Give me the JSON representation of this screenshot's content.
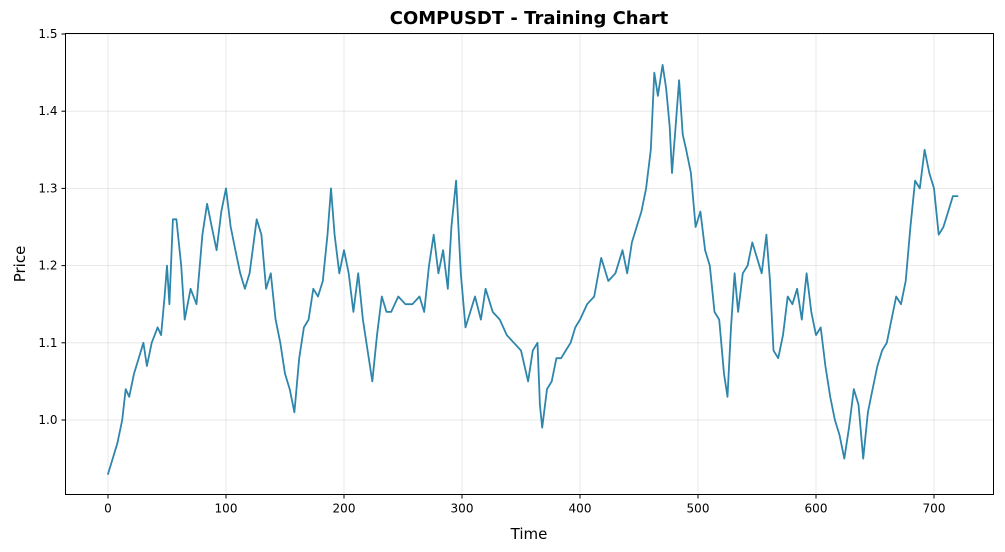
{
  "chart_data": {
    "type": "line",
    "title": "COMPUSDT - Training Chart",
    "xlabel": "Time",
    "ylabel": "Price",
    "xlim": [
      -37,
      1005
    ],
    "xlim_note": "data-units",
    "xlim_units": [
      -36,
      756
    ],
    "ylim": [
      0.905,
      1.5
    ],
    "grid": true,
    "x_ticks": [
      0,
      100,
      200,
      300,
      400,
      500,
      600,
      700
    ],
    "x_tick_labels": [
      "0",
      "100",
      "200",
      "300",
      "400",
      "500",
      "600",
      "700"
    ],
    "y_ticks": [
      1.0,
      1.1,
      1.2,
      1.3,
      1.4,
      1.5
    ],
    "y_tick_labels": [
      "1.0",
      "1.1",
      "1.2",
      "1.3",
      "1.4",
      "1.5"
    ],
    "series": [
      {
        "name": "COMPUSDT",
        "color": "#2e86ab",
        "points": [
          [
            0,
            0.93
          ],
          [
            4,
            0.95
          ],
          [
            8,
            0.97
          ],
          [
            12,
            1.0
          ],
          [
            15,
            1.04
          ],
          [
            18,
            1.03
          ],
          [
            22,
            1.06
          ],
          [
            26,
            1.08
          ],
          [
            30,
            1.1
          ],
          [
            33,
            1.07
          ],
          [
            37,
            1.1
          ],
          [
            42,
            1.12
          ],
          [
            45,
            1.11
          ],
          [
            48,
            1.16
          ],
          [
            50,
            1.2
          ],
          [
            52,
            1.15
          ],
          [
            55,
            1.26
          ],
          [
            58,
            1.26
          ],
          [
            62,
            1.2
          ],
          [
            65,
            1.13
          ],
          [
            70,
            1.17
          ],
          [
            75,
            1.15
          ],
          [
            80,
            1.24
          ],
          [
            84,
            1.28
          ],
          [
            88,
            1.25
          ],
          [
            92,
            1.22
          ],
          [
            96,
            1.27
          ],
          [
            100,
            1.3
          ],
          [
            104,
            1.25
          ],
          [
            108,
            1.22
          ],
          [
            112,
            1.19
          ],
          [
            116,
            1.17
          ],
          [
            120,
            1.19
          ],
          [
            126,
            1.26
          ],
          [
            130,
            1.24
          ],
          [
            134,
            1.17
          ],
          [
            138,
            1.19
          ],
          [
            142,
            1.13
          ],
          [
            146,
            1.1
          ],
          [
            150,
            1.06
          ],
          [
            154,
            1.04
          ],
          [
            158,
            1.01
          ],
          [
            162,
            1.08
          ],
          [
            166,
            1.12
          ],
          [
            170,
            1.13
          ],
          [
            174,
            1.17
          ],
          [
            178,
            1.16
          ],
          [
            182,
            1.18
          ],
          [
            186,
            1.24
          ],
          [
            189,
            1.3
          ],
          [
            192,
            1.24
          ],
          [
            196,
            1.19
          ],
          [
            200,
            1.22
          ],
          [
            204,
            1.19
          ],
          [
            208,
            1.14
          ],
          [
            212,
            1.19
          ],
          [
            216,
            1.13
          ],
          [
            220,
            1.09
          ],
          [
            224,
            1.05
          ],
          [
            228,
            1.11
          ],
          [
            232,
            1.16
          ],
          [
            236,
            1.14
          ],
          [
            240,
            1.14
          ],
          [
            246,
            1.16
          ],
          [
            252,
            1.15
          ],
          [
            258,
            1.15
          ],
          [
            264,
            1.16
          ],
          [
            268,
            1.14
          ],
          [
            272,
            1.2
          ],
          [
            276,
            1.24
          ],
          [
            280,
            1.19
          ],
          [
            284,
            1.22
          ],
          [
            288,
            1.17
          ],
          [
            291,
            1.25
          ],
          [
            295,
            1.31
          ],
          [
            299,
            1.19
          ],
          [
            303,
            1.12
          ],
          [
            307,
            1.14
          ],
          [
            311,
            1.16
          ],
          [
            316,
            1.13
          ],
          [
            320,
            1.17
          ],
          [
            326,
            1.14
          ],
          [
            332,
            1.13
          ],
          [
            338,
            1.11
          ],
          [
            344,
            1.1
          ],
          [
            350,
            1.09
          ],
          [
            356,
            1.05
          ],
          [
            360,
            1.09
          ],
          [
            364,
            1.1
          ],
          [
            366,
            1.02
          ],
          [
            368,
            0.99
          ],
          [
            372,
            1.04
          ],
          [
            376,
            1.05
          ],
          [
            380,
            1.08
          ],
          [
            384,
            1.08
          ],
          [
            388,
            1.09
          ],
          [
            392,
            1.1
          ],
          [
            396,
            1.12
          ],
          [
            400,
            1.13
          ],
          [
            406,
            1.15
          ],
          [
            412,
            1.16
          ],
          [
            418,
            1.21
          ],
          [
            424,
            1.18
          ],
          [
            430,
            1.19
          ],
          [
            436,
            1.22
          ],
          [
            440,
            1.19
          ],
          [
            444,
            1.23
          ],
          [
            448,
            1.25
          ],
          [
            452,
            1.27
          ],
          [
            456,
            1.3
          ],
          [
            460,
            1.35
          ],
          [
            463,
            1.45
          ],
          [
            466,
            1.42
          ],
          [
            470,
            1.46
          ],
          [
            473,
            1.43
          ],
          [
            476,
            1.38
          ],
          [
            478,
            1.32
          ],
          [
            481,
            1.38
          ],
          [
            484,
            1.44
          ],
          [
            487,
            1.37
          ],
          [
            490,
            1.35
          ],
          [
            494,
            1.32
          ],
          [
            498,
            1.25
          ],
          [
            502,
            1.27
          ],
          [
            506,
            1.22
          ],
          [
            510,
            1.2
          ],
          [
            514,
            1.14
          ],
          [
            518,
            1.13
          ],
          [
            522,
            1.06
          ],
          [
            525,
            1.03
          ],
          [
            528,
            1.12
          ],
          [
            531,
            1.19
          ],
          [
            534,
            1.14
          ],
          [
            538,
            1.19
          ],
          [
            542,
            1.2
          ],
          [
            546,
            1.23
          ],
          [
            550,
            1.21
          ],
          [
            554,
            1.19
          ],
          [
            558,
            1.24
          ],
          [
            561,
            1.18
          ],
          [
            564,
            1.09
          ],
          [
            568,
            1.08
          ],
          [
            572,
            1.11
          ],
          [
            576,
            1.16
          ],
          [
            580,
            1.15
          ],
          [
            584,
            1.17
          ],
          [
            588,
            1.13
          ],
          [
            592,
            1.19
          ],
          [
            596,
            1.14
          ],
          [
            600,
            1.11
          ],
          [
            604,
            1.12
          ],
          [
            608,
            1.07
          ],
          [
            612,
            1.03
          ],
          [
            616,
            1.0
          ],
          [
            620,
            0.98
          ],
          [
            624,
            0.95
          ],
          [
            628,
            0.99
          ],
          [
            632,
            1.04
          ],
          [
            636,
            1.02
          ],
          [
            640,
            0.95
          ],
          [
            644,
            1.01
          ],
          [
            648,
            1.04
          ],
          [
            652,
            1.07
          ],
          [
            656,
            1.09
          ],
          [
            660,
            1.1
          ],
          [
            664,
            1.13
          ],
          [
            668,
            1.16
          ],
          [
            672,
            1.15
          ],
          [
            676,
            1.18
          ],
          [
            680,
            1.25
          ],
          [
            684,
            1.31
          ],
          [
            688,
            1.3
          ],
          [
            692,
            1.35
          ],
          [
            696,
            1.32
          ],
          [
            700,
            1.3
          ],
          [
            704,
            1.24
          ],
          [
            708,
            1.25
          ],
          [
            712,
            1.27
          ],
          [
            716,
            1.29
          ],
          [
            720,
            1.29
          ]
        ]
      }
    ]
  }
}
